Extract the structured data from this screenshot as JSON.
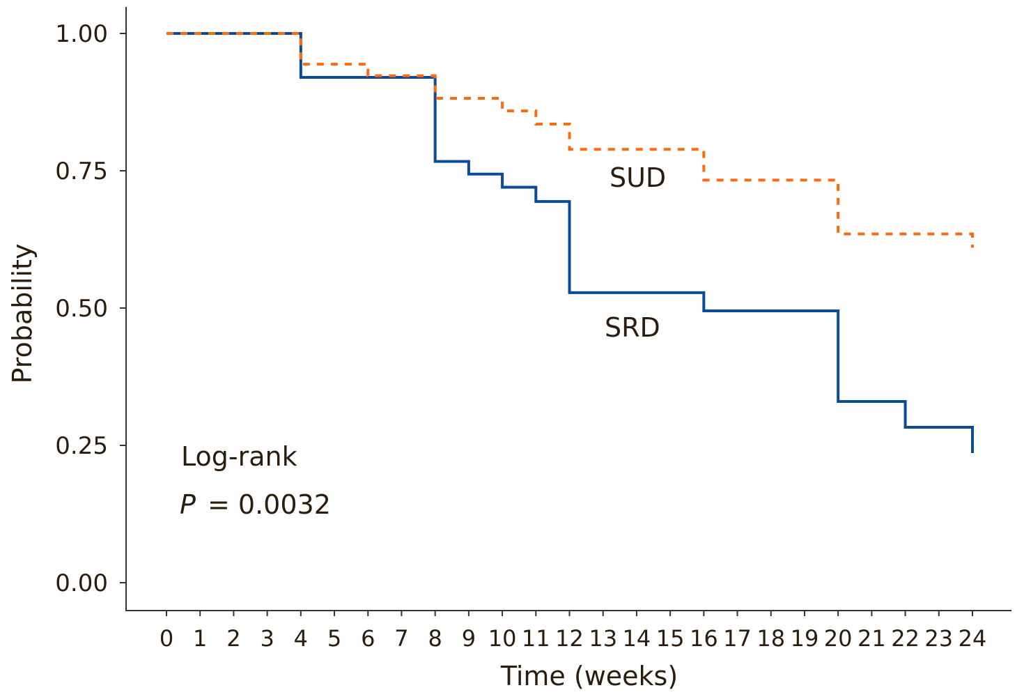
{
  "chart_data": {
    "type": "line",
    "step": true,
    "xlabel": "Time (weeks)",
    "ylabel": "Probability",
    "xlim": [
      0,
      24
    ],
    "ylim": [
      0,
      1
    ],
    "x_ticks": [
      "0",
      "1",
      "2",
      "3",
      "4",
      "5",
      "6",
      "7",
      "8",
      "9",
      "10",
      "11",
      "12",
      "13",
      "14",
      "15",
      "16",
      "17",
      "18",
      "19",
      "20",
      "21",
      "22",
      "23",
      "24"
    ],
    "y_ticks": [
      "0.00",
      "0.25",
      "0.50",
      "0.75",
      "1.00"
    ],
    "grid": false,
    "series": [
      {
        "name": "SUD",
        "color": "#ff6a10",
        "style": "dashed",
        "x": [
          0,
          4,
          6,
          8,
          10,
          11,
          12,
          16,
          20,
          24
        ],
        "y": [
          1.0,
          0.944,
          0.923,
          0.882,
          0.859,
          0.835,
          0.789,
          0.733,
          0.635,
          0.61
        ]
      },
      {
        "name": "SRD",
        "color": "#0a4a96",
        "style": "solid",
        "x": [
          0,
          4,
          8,
          9,
          10,
          11,
          12,
          16,
          20,
          22,
          24
        ],
        "y": [
          1.0,
          0.92,
          0.767,
          0.744,
          0.72,
          0.694,
          0.528,
          0.495,
          0.33,
          0.283,
          0.236
        ]
      }
    ],
    "annotations": {
      "test": "Log-rank",
      "p_label": "P",
      "p_value": "= 0.0032"
    }
  }
}
